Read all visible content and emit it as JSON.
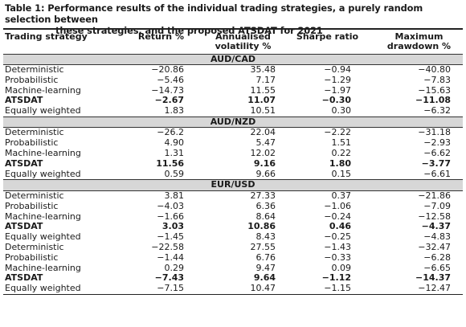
{
  "caption": {
    "line1": "Table 1: Performance results of the individual trading strategies, a purely random selection between",
    "line2": "these strategies, and the proposed ATSDAT for 2021"
  },
  "columns": [
    "Trading strategy",
    "Return %",
    "Annualised volatility %",
    "Sharpe ratio",
    "Maximum drawdown %"
  ],
  "columns_split": [
    [
      "Trading strategy",
      ""
    ],
    [
      "Return %",
      ""
    ],
    [
      "Annualised",
      "volatility %"
    ],
    [
      "Sharpe ratio",
      ""
    ],
    [
      "Maximum",
      "drawdown %"
    ]
  ],
  "sections": [
    {
      "pair": "AUD/CAD",
      "rows": [
        {
          "strategy": "Deterministic",
          "return": "−20.86",
          "vol": "35.48",
          "sharpe": "−0.94",
          "mdd": "−40.80",
          "bold": false
        },
        {
          "strategy": "Probabilistic",
          "return": "−5.46",
          "vol": "7.17",
          "sharpe": "−1.29",
          "mdd": "−7.83",
          "bold": false
        },
        {
          "strategy": "Machine-learning",
          "return": "−14.73",
          "vol": "11.55",
          "sharpe": "−1.97",
          "mdd": "−15.63",
          "bold": false
        },
        {
          "strategy": "ATSDAT",
          "return": "−2.67",
          "vol": "11.07",
          "sharpe": "−0.30",
          "mdd": "−11.08",
          "bold": true
        },
        {
          "strategy": "Equally weighted",
          "return": "1.83",
          "vol": "10.51",
          "sharpe": "0.30",
          "mdd": "−6.32",
          "bold": false
        }
      ]
    },
    {
      "pair": "AUD/NZD",
      "rows": [
        {
          "strategy": "Deterministic",
          "return": "−26.2",
          "vol": "22.04",
          "sharpe": "−2.22",
          "mdd": "−31.18",
          "bold": false
        },
        {
          "strategy": "Probabilistic",
          "return": "4.90",
          "vol": "5.47",
          "sharpe": "1.51",
          "mdd": "−2.93",
          "bold": false
        },
        {
          "strategy": "Machine-learning",
          "return": "1.31",
          "vol": "12.02",
          "sharpe": "0.22",
          "mdd": "−6.62",
          "bold": false
        },
        {
          "strategy": "ATSDAT",
          "return": "11.56",
          "vol": "9.16",
          "sharpe": "1.80",
          "mdd": "−3.77",
          "bold": true
        },
        {
          "strategy": "Equally weighted",
          "return": "0.59",
          "vol": "9.66",
          "sharpe": "0.15",
          "mdd": "−6.61",
          "bold": false
        }
      ]
    },
    {
      "pair": "EUR/USD",
      "rows": [
        {
          "strategy": "Deterministic",
          "return": "3.81",
          "vol": "27.33",
          "sharpe": "0.37",
          "mdd": "−21.86",
          "bold": false
        },
        {
          "strategy": "Probabilistic",
          "return": "−4.03",
          "vol": "6.36",
          "sharpe": "−1.06",
          "mdd": "−7.09",
          "bold": false
        },
        {
          "strategy": "Machine-learning",
          "return": "−1.66",
          "vol": "8.64",
          "sharpe": "−0.24",
          "mdd": "−12.58",
          "bold": false
        },
        {
          "strategy": "ATSDAT",
          "return": "3.03",
          "vol": "10.86",
          "sharpe": "0.46",
          "mdd": "−4.37",
          "bold": true
        },
        {
          "strategy": "Equally weighted",
          "return": "−1.45",
          "vol": "8.43",
          "sharpe": "−0.25",
          "mdd": "−4.83",
          "bold": false
        },
        {
          "strategy": "Deterministic",
          "return": "−22.58",
          "vol": "27.55",
          "sharpe": "−1.43",
          "mdd": "−32.47",
          "bold": false
        },
        {
          "strategy": "Probabilistic",
          "return": "−1.44",
          "vol": "6.76",
          "sharpe": "−0.33",
          "mdd": "−6.28",
          "bold": false
        },
        {
          "strategy": "Machine-learning",
          "return": "0.29",
          "vol": "9.47",
          "sharpe": "0.09",
          "mdd": "−6.65",
          "bold": false
        },
        {
          "strategy": "ATSDAT",
          "return": "−7.43",
          "vol": "9.64",
          "sharpe": "−1.12",
          "mdd": "−14.37",
          "bold": true
        },
        {
          "strategy": "Equally weighted",
          "return": "−7.15",
          "vol": "10.47",
          "sharpe": "−1.15",
          "mdd": "−12.47",
          "bold": false
        }
      ]
    }
  ]
}
